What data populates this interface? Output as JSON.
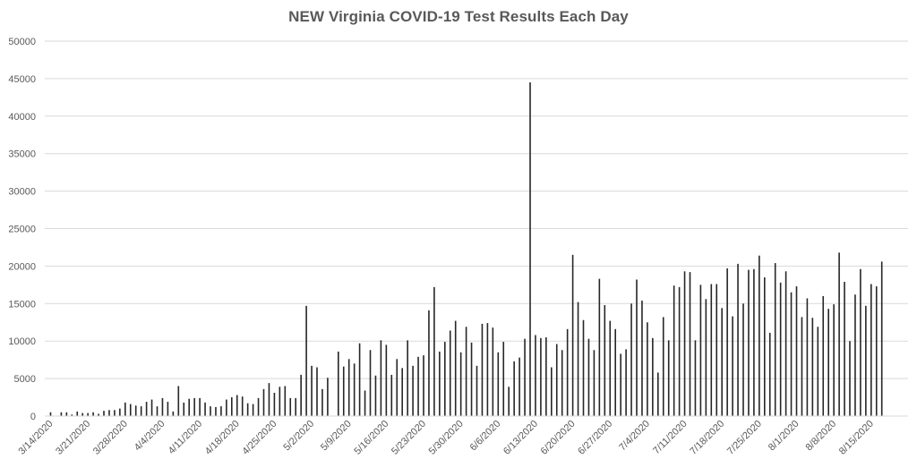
{
  "chart_data": {
    "type": "bar",
    "title": "NEW Virginia COVID-19 Test Results Each Day",
    "xlabel": "",
    "ylabel": "",
    "ylim": [
      0,
      50000
    ],
    "y_ticks": [
      0,
      5000,
      10000,
      15000,
      20000,
      25000,
      30000,
      35000,
      40000,
      45000,
      50000
    ],
    "grid": true,
    "legend": "none",
    "bar_color": "#262626",
    "gridline_color": "#d9d9d9",
    "start_date": "3/14/2020",
    "x_tick_labels": [
      "3/14/2020",
      "3/21/2020",
      "3/28/2020",
      "4/4/2020",
      "4/11/2020",
      "4/18/2020",
      "4/25/2020",
      "5/2/2020",
      "5/9/2020",
      "5/16/2020",
      "5/23/2020",
      "5/30/2020",
      "6/6/2020",
      "6/13/2020",
      "6/20/2020",
      "6/27/2020",
      "7/4/2020",
      "7/11/2020",
      "7/18/2020",
      "7/25/2020",
      "8/1/2020",
      "8/8/2020",
      "8/15/2020"
    ],
    "values": [
      500,
      0,
      500,
      500,
      200,
      600,
      400,
      400,
      500,
      300,
      700,
      800,
      800,
      1000,
      1800,
      1600,
      1400,
      1300,
      1900,
      2200,
      1300,
      2400,
      1900,
      600,
      4000,
      1800,
      2300,
      2400,
      2400,
      1800,
      1300,
      1200,
      1300,
      2200,
      2500,
      2800,
      2600,
      1700,
      1600,
      2400,
      3600,
      4400,
      3100,
      3900,
      4000,
      2400,
      2400,
      5500,
      14700,
      6700,
      6500,
      3600,
      5100,
      0,
      8600,
      6600,
      7600,
      7000,
      9700,
      3400,
      8800,
      5400,
      10100,
      9500,
      5500,
      7600,
      6400,
      10100,
      6700,
      7900,
      8100,
      14100,
      17200,
      8600,
      9900,
      11400,
      12700,
      8500,
      11900,
      9800,
      6700,
      12300,
      12400,
      11800,
      8500,
      9900,
      3900,
      7300,
      7800,
      10300,
      44500,
      10800,
      10400,
      10500,
      6500,
      9600,
      8800,
      11600,
      21500,
      15200,
      12800,
      10300,
      8800,
      18300,
      14800,
      12700,
      11600,
      8300,
      8900,
      15000,
      18200,
      15400,
      12500,
      10400,
      5800,
      13200,
      10100,
      17400,
      17200,
      19300,
      19200,
      10100,
      17500,
      15600,
      17600,
      17600,
      14400,
      19700,
      13300,
      20300,
      15000,
      19500,
      19600,
      21400,
      18500,
      11100,
      20400,
      17800,
      19300,
      16500,
      17300,
      13200,
      15700,
      13100,
      11900,
      16000,
      14300,
      14900,
      21800,
      17900,
      10000,
      16200,
      19600,
      14700,
      17600,
      17300,
      20600
    ]
  }
}
